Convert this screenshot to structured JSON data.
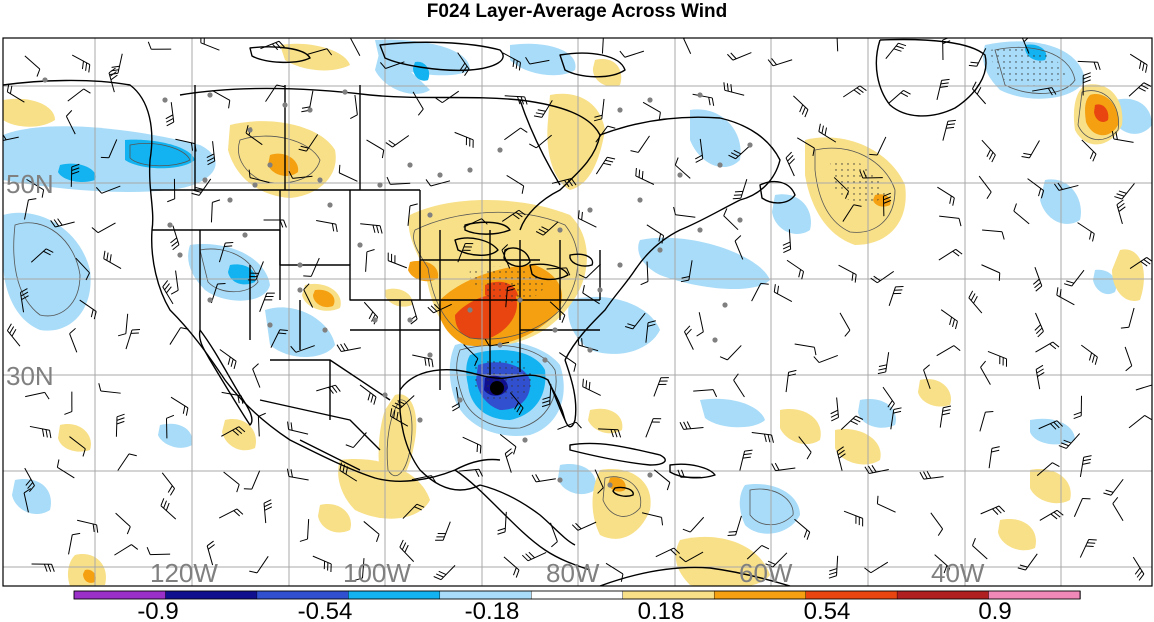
{
  "title": "F024 Layer-Average Across Wind",
  "map": {
    "lat_labels": [
      "50N",
      "30N"
    ],
    "lon_labels": [
      "120W",
      "100W",
      "80W",
      "60W",
      "40W"
    ],
    "colors": {
      "land_line": "#000000",
      "grid_line": "#a8a8a8",
      "axis_label": "#808080"
    }
  },
  "colorbar": {
    "tick_labels": [
      "-0.9",
      "-0.54",
      "-0.18",
      "0.18",
      "0.54",
      "0.9"
    ],
    "colors": [
      "#9b30c8",
      "#10108f",
      "#3050d0",
      "#12b3f0",
      "#a8dcf8",
      "#ffffff",
      "#f8e088",
      "#f4a010",
      "#e84510",
      "#b02020",
      "#f088b8"
    ]
  }
}
